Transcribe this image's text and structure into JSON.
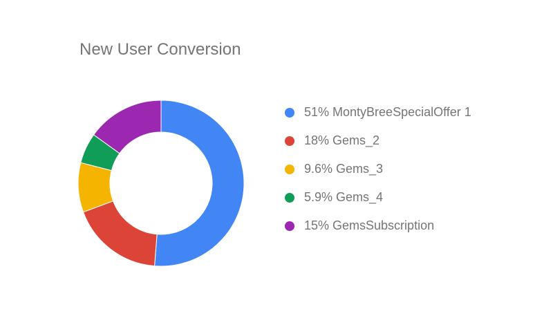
{
  "chart_data": {
    "type": "pie",
    "title": "New User Conversion",
    "variant": "donut",
    "legend_position": "right",
    "slices": [
      {
        "label": "MontyBreeSpecialOffer 1",
        "percent_label": "51%",
        "value": 51.0,
        "color": "#4285F4"
      },
      {
        "label": "Gems_2",
        "percent_label": "18%",
        "value": 18.0,
        "color": "#DB4437"
      },
      {
        "label": "Gems_3",
        "percent_label": "9.6%",
        "value": 9.6,
        "color": "#F4B400"
      },
      {
        "label": "Gems_4",
        "percent_label": "5.9%",
        "value": 5.9,
        "color": "#0F9D58"
      },
      {
        "label": "GemsSubscription",
        "percent_label": "15%",
        "value": 15.0,
        "color": "#9C27B0"
      }
    ]
  }
}
